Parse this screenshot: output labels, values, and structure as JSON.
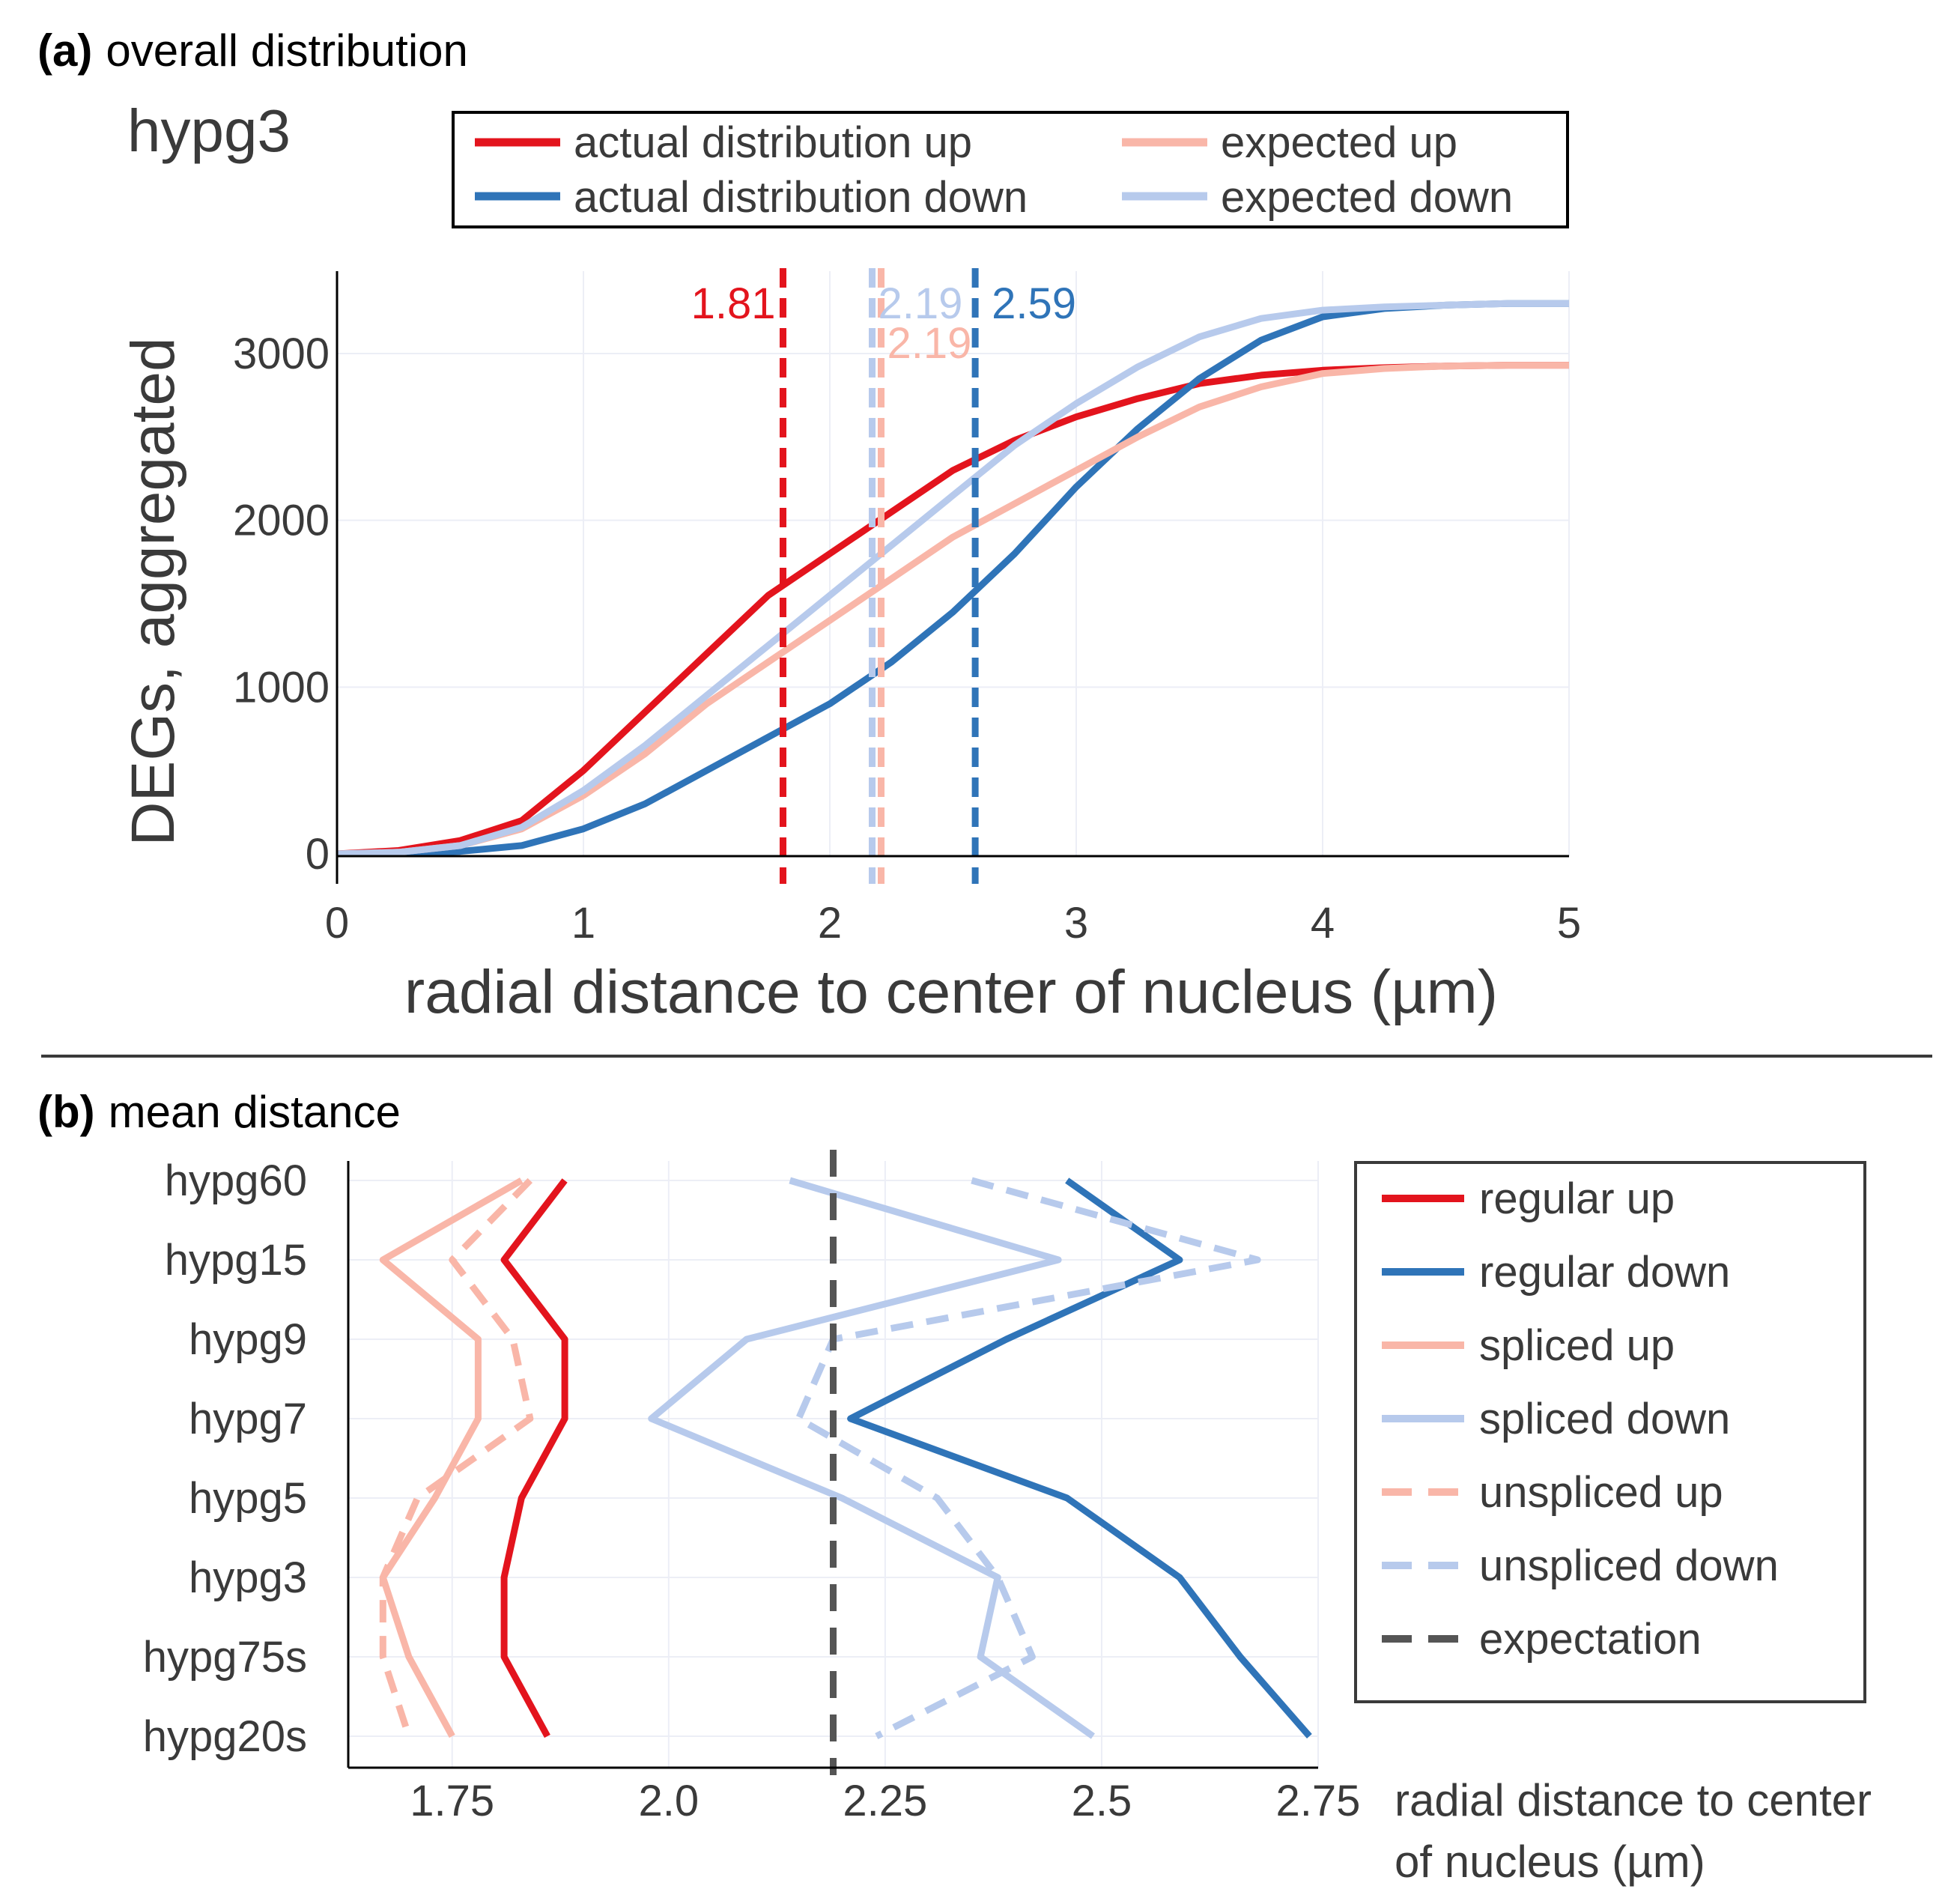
{
  "colors": {
    "red": "#e3141d",
    "blue": "#2f74b8",
    "light_red": "#f9b6a8",
    "light_blue": "#b7caec",
    "gray": "#555555",
    "grid": "#eceef6",
    "text": "#3a3a3a",
    "black": "#000000"
  },
  "chart_data": [
    {
      "type": "line",
      "panel_label": "(a)",
      "panel_title": "overall distribution",
      "title": "hypg3",
      "xlabel": "radial distance to center of nucleus (µm)",
      "ylabel": "DEGs, aggregated",
      "xlim": [
        0,
        5
      ],
      "ylim": [
        -40,
        3500
      ],
      "x_ticks": [
        0,
        1,
        2,
        3,
        4,
        5
      ],
      "x_tick_labels": [
        "0",
        "1",
        "2",
        "3",
        "4",
        "5"
      ],
      "y_ticks": [
        0,
        1000,
        2000,
        3000
      ],
      "y_tick_labels": [
        "0",
        "1000",
        "2000",
        "3000"
      ],
      "grid": true,
      "legend": [
        "actual distribution up",
        "actual distribution down",
        "expected up",
        "expected down"
      ],
      "x": [
        0,
        0.25,
        0.5,
        0.75,
        1.0,
        1.25,
        1.5,
        1.75,
        2.0,
        2.25,
        2.5,
        2.75,
        3.0,
        3.25,
        3.5,
        3.75,
        4.0,
        4.25,
        4.5,
        4.75,
        5.0
      ],
      "series": [
        {
          "name": "actual distribution up",
          "color_key": "red",
          "values": [
            0,
            20,
            80,
            200,
            500,
            850,
            1200,
            1550,
            1800,
            2050,
            2300,
            2480,
            2620,
            2730,
            2820,
            2870,
            2900,
            2915,
            2925,
            2930,
            2930
          ]
        },
        {
          "name": "actual distribution down",
          "color_key": "blue",
          "values": [
            0,
            5,
            15,
            50,
            150,
            300,
            500,
            700,
            900,
            1150,
            1450,
            1800,
            2200,
            2550,
            2850,
            3080,
            3220,
            3270,
            3290,
            3300,
            3300
          ]
        },
        {
          "name": "expected up",
          "color_key": "light_red",
          "values": [
            0,
            10,
            50,
            150,
            350,
            600,
            900,
            1150,
            1400,
            1650,
            1900,
            2100,
            2300,
            2500,
            2680,
            2800,
            2880,
            2910,
            2925,
            2930,
            2930
          ]
        },
        {
          "name": "expected down",
          "color_key": "light_blue",
          "values": [
            0,
            10,
            50,
            160,
            380,
            650,
            950,
            1250,
            1550,
            1850,
            2150,
            2450,
            2700,
            2920,
            3100,
            3210,
            3260,
            3280,
            3290,
            3300,
            3300
          ]
        }
      ],
      "vlines": [
        {
          "x": 1.81,
          "label": "1.81",
          "color_key": "red"
        },
        {
          "x": 2.19,
          "label": "2.19",
          "color_key": "light_red"
        },
        {
          "x": 2.19,
          "label": "2.19",
          "color_key": "light_blue"
        },
        {
          "x": 2.59,
          "label": "2.59",
          "color_key": "blue"
        }
      ]
    },
    {
      "type": "line",
      "panel_label": "(b)",
      "panel_title": "mean distance",
      "xlabel_line1": "radial distance to center",
      "xlabel_line2": "of nucleus (µm)",
      "xlim": [
        1.63,
        2.75
      ],
      "x_ticks": [
        1.75,
        2.0,
        2.25,
        2.5,
        2.75
      ],
      "x_tick_labels": [
        "1.75",
        "2.0",
        "2.25",
        "2.5",
        "2.75"
      ],
      "categories": [
        "hypg60",
        "hypg15",
        "hypg9",
        "hypg7",
        "hypg5",
        "hypg3",
        "hypg75s",
        "hypg20s"
      ],
      "expectation": 2.19,
      "grid": true,
      "legend": [
        "regular up",
        "regular down",
        "spliced up",
        "spliced down",
        "unspliced up",
        "unspliced down",
        "expectation"
      ],
      "series": [
        {
          "name": "regular up",
          "color_key": "red",
          "dash": false,
          "values": [
            1.88,
            1.81,
            1.88,
            1.88,
            1.83,
            1.81,
            1.81,
            1.86
          ]
        },
        {
          "name": "regular down",
          "color_key": "blue",
          "dash": false,
          "values": [
            2.46,
            2.59,
            2.39,
            2.21,
            2.46,
            2.59,
            2.66,
            2.74
          ]
        },
        {
          "name": "spliced up",
          "color_key": "light_red",
          "dash": false,
          "values": [
            1.83,
            1.67,
            1.78,
            1.78,
            1.73,
            1.67,
            1.7,
            1.75
          ]
        },
        {
          "name": "spliced down",
          "color_key": "light_blue",
          "dash": false,
          "values": [
            2.14,
            2.45,
            2.09,
            1.98,
            2.2,
            2.38,
            2.36,
            2.49
          ]
        },
        {
          "name": "unspliced up",
          "color_key": "light_red",
          "dash": true,
          "values": [
            1.84,
            1.75,
            1.82,
            1.84,
            1.71,
            1.67,
            1.67,
            1.7
          ]
        },
        {
          "name": "unspliced down",
          "color_key": "light_blue",
          "dash": true,
          "values": [
            2.35,
            2.68,
            2.19,
            2.15,
            2.31,
            2.38,
            2.42,
            2.24
          ]
        }
      ]
    }
  ]
}
